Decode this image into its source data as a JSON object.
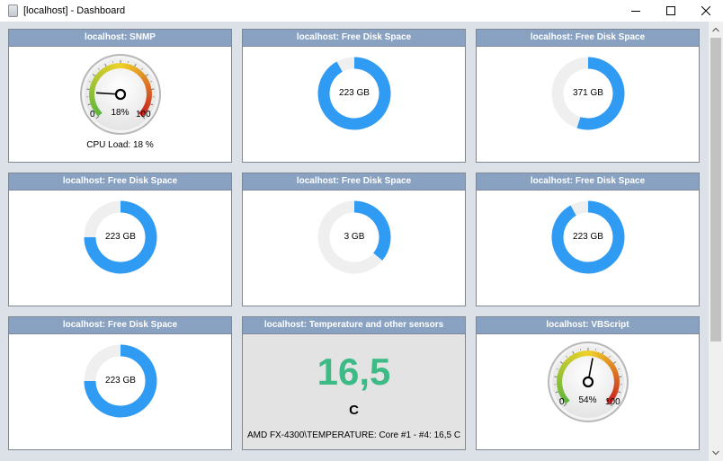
{
  "window": {
    "title": "[localhost] - Dashboard"
  },
  "colors": {
    "header_bg": "#8aa2c1",
    "donut_used": "#2f9bf2",
    "donut_free": "#efefef",
    "temperature_value": "#3dba86"
  },
  "panels": [
    {
      "title": "localhost: SNMP",
      "type": "gauge",
      "value": 18,
      "min_label": "0",
      "max_label": "100",
      "value_label": "18%",
      "caption": "CPU Load: 18 %"
    },
    {
      "title": "localhost: Free Disk Space",
      "type": "donut",
      "label": "223 GB",
      "fraction": 0.92
    },
    {
      "title": "localhost: Free Disk Space",
      "type": "donut",
      "label": "371 GB",
      "fraction": 0.55
    },
    {
      "title": "localhost: Free Disk Space",
      "type": "donut",
      "label": "223 GB",
      "fraction": 0.75
    },
    {
      "title": "localhost: Free Disk Space",
      "type": "donut",
      "label": "3 GB",
      "fraction": 0.36
    },
    {
      "title": "localhost: Free Disk Space",
      "type": "donut",
      "label": "223 GB",
      "fraction": 0.92
    },
    {
      "title": "localhost: Free Disk Space",
      "type": "donut",
      "label": "223 GB",
      "fraction": 0.75
    },
    {
      "title": "localhost: Temperature and other sensors",
      "type": "value",
      "value": "16,5",
      "unit": "C",
      "caption": "AMD FX-4300\\TEMPERATURE:  Core #1 - #4: 16,5 C"
    },
    {
      "title": "localhost: VBScript",
      "type": "gauge",
      "value": 54,
      "min_label": "0",
      "max_label": "100",
      "value_label": "54%"
    }
  ]
}
